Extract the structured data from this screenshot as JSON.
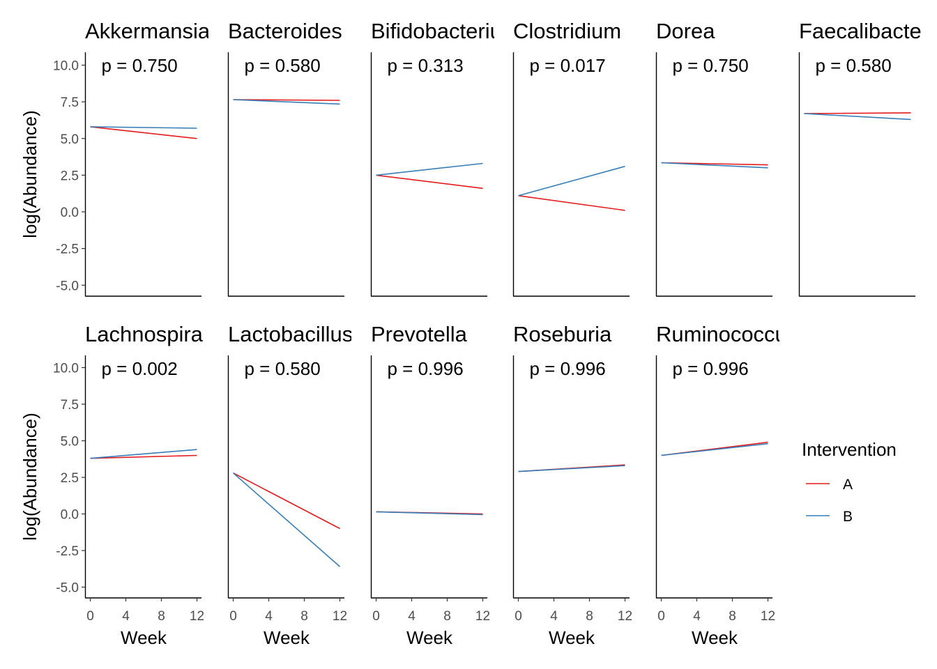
{
  "chart_data": {
    "type": "line",
    "ylabel": "log(Abundance)",
    "xlabel": "Week",
    "x_ticks": [
      0,
      4,
      8,
      12
    ],
    "y_ticks": [
      "10.0",
      "7.5",
      "5.0",
      "2.5",
      "0.0",
      "-2.5",
      "-5.0"
    ],
    "ylim": [
      -5.7,
      10.7
    ],
    "xlim": [
      -0.5,
      12.5
    ],
    "colors": {
      "A": "#e41a1c",
      "B": "#377eb8"
    },
    "legend": {
      "title": "Intervention",
      "placement": "right",
      "entries": [
        "A",
        "B"
      ]
    },
    "panels": [
      {
        "title": "Akkermansia",
        "p": "p = 0.750",
        "series": [
          {
            "name": "A",
            "x": [
              0,
              12
            ],
            "y": [
              5.8,
              5.0
            ]
          },
          {
            "name": "B",
            "x": [
              0,
              12
            ],
            "y": [
              5.8,
              5.7
            ]
          }
        ]
      },
      {
        "title": "Bacteroides",
        "p": "p = 0.580",
        "series": [
          {
            "name": "A",
            "x": [
              0,
              12
            ],
            "y": [
              7.65,
              7.6
            ]
          },
          {
            "name": "B",
            "x": [
              0,
              12
            ],
            "y": [
              7.65,
              7.35
            ]
          }
        ]
      },
      {
        "title": "Bifidobacterium",
        "p": "p = 0.313",
        "series": [
          {
            "name": "A",
            "x": [
              0,
              12
            ],
            "y": [
              2.5,
              1.6
            ]
          },
          {
            "name": "B",
            "x": [
              0,
              12
            ],
            "y": [
              2.5,
              3.3
            ]
          }
        ]
      },
      {
        "title": "Clostridium",
        "p": "p = 0.017",
        "series": [
          {
            "name": "A",
            "x": [
              0,
              12
            ],
            "y": [
              1.1,
              0.1
            ]
          },
          {
            "name": "B",
            "x": [
              0,
              12
            ],
            "y": [
              1.1,
              3.1
            ]
          }
        ]
      },
      {
        "title": "Dorea",
        "p": "p = 0.750",
        "series": [
          {
            "name": "A",
            "x": [
              0,
              12
            ],
            "y": [
              3.35,
              3.2
            ]
          },
          {
            "name": "B",
            "x": [
              0,
              12
            ],
            "y": [
              3.35,
              3.0
            ]
          }
        ]
      },
      {
        "title": "Faecalibacterium",
        "p": "p = 0.580",
        "series": [
          {
            "name": "A",
            "x": [
              0,
              12
            ],
            "y": [
              6.7,
              6.75
            ]
          },
          {
            "name": "B",
            "x": [
              0,
              12
            ],
            "y": [
              6.7,
              6.3
            ]
          }
        ]
      },
      {
        "title": "Lachnospira",
        "p": "p = 0.002",
        "series": [
          {
            "name": "A",
            "x": [
              0,
              12
            ],
            "y": [
              3.8,
              4.0
            ]
          },
          {
            "name": "B",
            "x": [
              0,
              12
            ],
            "y": [
              3.8,
              4.4
            ]
          }
        ]
      },
      {
        "title": "Lactobacillus",
        "p": "p = 0.580",
        "series": [
          {
            "name": "A",
            "x": [
              0,
              12
            ],
            "y": [
              2.8,
              -1.0
            ]
          },
          {
            "name": "B",
            "x": [
              0,
              12
            ],
            "y": [
              2.8,
              -3.6
            ]
          }
        ]
      },
      {
        "title": "Prevotella",
        "p": "p = 0.996",
        "series": [
          {
            "name": "A",
            "x": [
              0,
              12
            ],
            "y": [
              0.15,
              0.0
            ]
          },
          {
            "name": "B",
            "x": [
              0,
              12
            ],
            "y": [
              0.15,
              -0.05
            ]
          }
        ]
      },
      {
        "title": "Roseburia",
        "p": "p = 0.996",
        "series": [
          {
            "name": "A",
            "x": [
              0,
              12
            ],
            "y": [
              2.9,
              3.35
            ]
          },
          {
            "name": "B",
            "x": [
              0,
              12
            ],
            "y": [
              2.9,
              3.3
            ]
          }
        ]
      },
      {
        "title": "Ruminococcus",
        "p": "p = 0.996",
        "series": [
          {
            "name": "A",
            "x": [
              0,
              12
            ],
            "y": [
              4.0,
              4.9
            ]
          },
          {
            "name": "B",
            "x": [
              0,
              12
            ],
            "y": [
              4.0,
              4.8
            ]
          }
        ]
      }
    ]
  }
}
